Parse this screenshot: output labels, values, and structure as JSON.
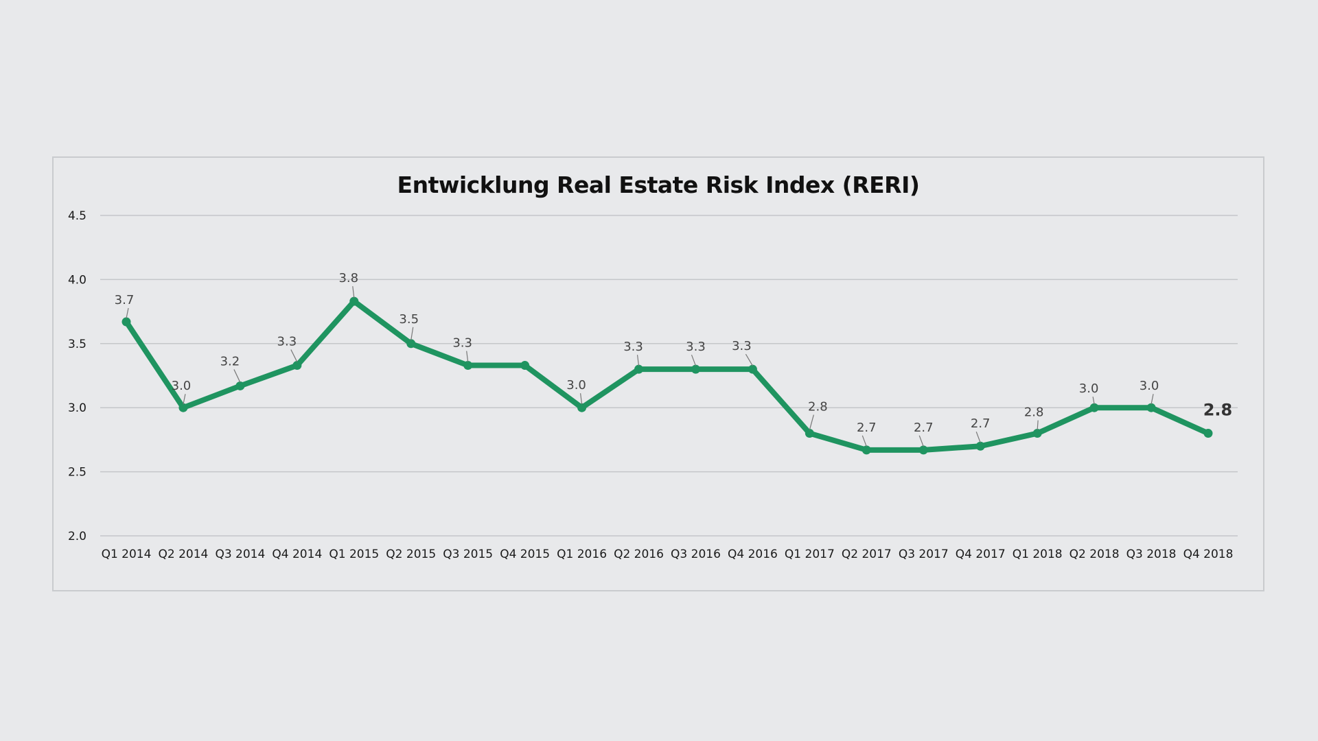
{
  "chart_data": {
    "type": "line",
    "title": "Entwicklung Real Estate Risk Index (RERI)",
    "xlabel": "",
    "ylabel": "",
    "ylim": [
      2.0,
      4.5
    ],
    "yticks": [
      "2.0",
      "2.5",
      "3.0",
      "3.5",
      "4.0",
      "4.5"
    ],
    "grid": true,
    "legend": "none",
    "categories": [
      "Q1 2014",
      "Q2 2014",
      "Q3 2014",
      "Q4 2014",
      "Q1 2015",
      "Q2 2015",
      "Q3 2015",
      "Q4 2015",
      "Q1 2016",
      "Q2 2016",
      "Q3 2016",
      "Q4 2016",
      "Q1 2017",
      "Q2 2017",
      "Q3 2017",
      "Q4 2017",
      "Q1 2018",
      "Q2 2018",
      "Q3 2018",
      "Q4 2018"
    ],
    "series": [
      {
        "values": [
          3.67,
          3.0,
          3.17,
          3.33,
          3.83,
          3.5,
          3.33,
          3.33,
          3.0,
          3.3,
          3.3,
          3.3,
          2.8,
          2.67,
          2.67,
          2.7,
          2.8,
          3.0,
          3.0,
          2.8
        ],
        "data_labels": [
          "3.7",
          "3.0",
          "3.2",
          "3.3",
          "3.8",
          "3.5",
          "3.3",
          "",
          "3.0",
          "3.3",
          "3.3",
          "3.3",
          "2.8",
          "2.7",
          "2.7",
          "2.7",
          "2.8",
          "3.0",
          "3.0",
          "2.8"
        ],
        "color": "#1f9460"
      }
    ],
    "highlight_last_label": true
  }
}
